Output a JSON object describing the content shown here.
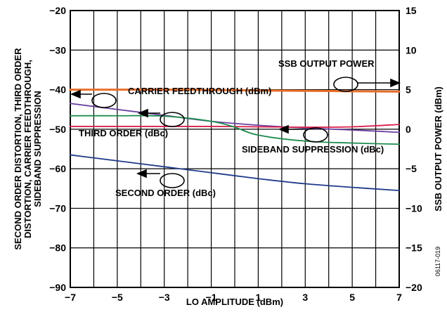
{
  "chart_data": {
    "type": "line",
    "xlabel": "LO AMPLITUDE (dBm)",
    "ylabel_left": [
      "SECOND ORDER DISTORTION, THIRD ORDER",
      "DISTORTION, CARRIER FEEDTHROUGH,",
      "SIDEBAND SUPPRESSION"
    ],
    "ylabel_right": "SSB OUTPUT POWER (dBm)",
    "figure_id": "06117-019",
    "xlim": [
      -7,
      7
    ],
    "ylim_left": [
      -90,
      -20
    ],
    "ylim_right": [
      -20,
      15
    ],
    "x_ticks": [
      -7,
      -6,
      -5,
      -4,
      -3,
      -2,
      -1,
      0,
      1,
      2,
      3,
      4,
      5,
      6,
      7
    ],
    "x_tick_labels": [
      "−7",
      "−5",
      "−3",
      "−1",
      "1",
      "3",
      "5",
      "7"
    ],
    "x_tick_label_values": [
      -7,
      -5,
      -3,
      -1,
      1,
      3,
      5,
      7
    ],
    "y_left_ticks": [
      -20,
      -30,
      -40,
      -50,
      -60,
      -70,
      -80,
      -90
    ],
    "y_left_tick_labels": [
      "−20",
      "−30",
      "−40",
      "−50",
      "−60",
      "−70",
      "−80",
      "−90"
    ],
    "y_right_ticks": [
      15,
      10,
      5,
      0,
      -5,
      -10,
      -15,
      -20
    ],
    "y_right_tick_labels": [
      "15",
      "10",
      "5",
      "0",
      "−5",
      "−10",
      "−15",
      "−20"
    ],
    "grid": true,
    "series": [
      {
        "name": "SSB OUTPUT POWER",
        "axis": "right",
        "color": "#e8702a",
        "x": [
          -7,
          -5,
          -3,
          -1,
          1,
          3,
          5,
          7
        ],
        "y": [
          5.0,
          5.0,
          5.0,
          4.95,
          4.9,
          4.85,
          4.8,
          4.75
        ]
      },
      {
        "name": "CARRIER FEEDTHROUGH (dBm)",
        "axis": "left",
        "color": "#6a3fa0",
        "x": [
          -7,
          -5,
          -3,
          -1,
          1,
          3,
          5,
          7
        ],
        "y": [
          -43.5,
          -45.0,
          -46.5,
          -48.0,
          -49.0,
          -49.7,
          -50.2,
          -50.8
        ]
      },
      {
        "name": "THIRD ORDER (dBc)",
        "axis": "left",
        "color": "#d81e4a",
        "x": [
          -7,
          -5,
          -3,
          -1,
          1,
          3,
          5,
          7
        ],
        "y": [
          -49.3,
          -49.3,
          -49.3,
          -49.3,
          -49.4,
          -49.5,
          -49.4,
          -48.8
        ]
      },
      {
        "name": "SIDEBAND SUPPRESSION (dBc)",
        "axis": "left",
        "color": "#1e8c4e",
        "x": [
          -7,
          -5,
          -3,
          -1,
          0,
          1,
          3,
          5,
          7
        ],
        "y": [
          -46.6,
          -46.6,
          -46.7,
          -48.0,
          -49.5,
          -51.5,
          -53.0,
          -53.5,
          -53.8
        ]
      },
      {
        "name": "SECOND ORDER (dBc)",
        "axis": "left",
        "color": "#1f3a8a",
        "x": [
          -7,
          -5,
          -3,
          -1,
          1,
          3,
          5,
          7
        ],
        "y": [
          -56.5,
          -58.0,
          -59.5,
          -61.0,
          -62.5,
          -63.8,
          -64.7,
          -65.5
        ]
      }
    ],
    "annotations": [
      {
        "text": "SSB OUTPUT POWER",
        "points_to": "right-axis"
      },
      {
        "text": "CARRIER FEEDTHROUGH (dBm)",
        "points_to": "left-axis"
      },
      {
        "text": "THIRD ORDER (dBc)",
        "points_to": "left-axis"
      },
      {
        "text": "SIDEBAND SUPPRESSION (dBc)",
        "points_to": "left-axis"
      },
      {
        "text": "SECOND ORDER (dBc)",
        "points_to": "left-axis"
      }
    ]
  }
}
